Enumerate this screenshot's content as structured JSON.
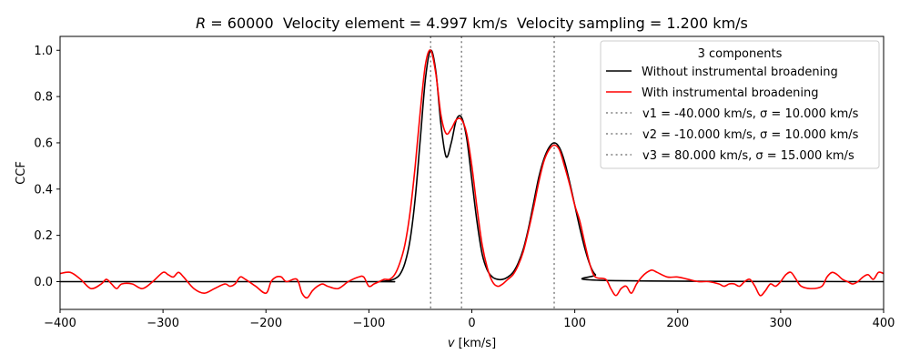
{
  "chart_data": {
    "type": "line",
    "title": {
      "r_symbol": "R",
      "r_text": " = 60000  Velocity element = 4.997 km/s  Velocity sampling = 1.200 km/s"
    },
    "xlabel": {
      "symbol": "v",
      "unit": " [km/s]"
    },
    "ylabel": "CCF",
    "xlim": [
      -400,
      400
    ],
    "ylim": [
      -0.12,
      1.06
    ],
    "xticks": [
      -400,
      -300,
      -200,
      -100,
      0,
      100,
      200,
      300,
      400
    ],
    "yticks": [
      0.0,
      0.2,
      0.4,
      0.6,
      0.8,
      1.0
    ],
    "ytick_labels": [
      "0.0",
      "0.2",
      "0.4",
      "0.6",
      "0.8",
      "1.0"
    ],
    "grid": false,
    "legend": {
      "placement": "top-right",
      "title": "3 components",
      "entries": [
        "Without instrumental broadening",
        "With instrumental broadening",
        "v1 = -40.000 km/s, σ = 10.000 km/s",
        "v2 = -10.000 km/s, σ = 10.000 km/s",
        "v3 = 80.000 km/s, σ = 15.000 km/s"
      ]
    },
    "components": [
      {
        "v": -40.0,
        "sigma": 10.0,
        "amplitude": 1.0
      },
      {
        "v": -10.0,
        "sigma": 10.0,
        "amplitude": 0.7
      },
      {
        "v": 80.0,
        "sigma": 15.0,
        "amplitude": 0.6
      }
    ],
    "series": [
      {
        "name": "Without instrumental broadening",
        "color": "#000000",
        "x": [
          -400,
          -100,
          -90,
          -80,
          -75,
          -70,
          -65,
          -60,
          -55,
          -50,
          -45,
          -40,
          -35,
          -30,
          -25,
          -20,
          -15,
          -10,
          -5,
          0,
          5,
          10,
          15,
          20,
          25,
          30,
          35,
          40,
          45,
          50,
          55,
          60,
          65,
          70,
          75,
          80,
          85,
          90,
          95,
          100,
          105,
          110,
          115,
          120,
          130,
          400
        ],
        "y": [
          0.0,
          0.0,
          0.0,
          0.005,
          0.012,
          0.03,
          0.08,
          0.18,
          0.36,
          0.62,
          0.88,
          1.0,
          0.91,
          0.68,
          0.54,
          0.6,
          0.7,
          0.71,
          0.62,
          0.44,
          0.26,
          0.12,
          0.05,
          0.02,
          0.01,
          0.01,
          0.02,
          0.04,
          0.08,
          0.14,
          0.23,
          0.34,
          0.45,
          0.53,
          0.58,
          0.6,
          0.58,
          0.52,
          0.43,
          0.33,
          0.23,
          0.14,
          0.07,
          0.03,
          0.005,
          0.0
        ]
      },
      {
        "name": "With instrumental broadening",
        "color": "#ff0000",
        "x": [
          -400,
          -390,
          -380,
          -370,
          -360,
          -355,
          -350,
          -345,
          -340,
          -330,
          -320,
          -310,
          -300,
          -295,
          -290,
          -285,
          -280,
          -270,
          -260,
          -250,
          -240,
          -235,
          -230,
          -225,
          -220,
          -210,
          -200,
          -195,
          -190,
          -185,
          -180,
          -170,
          -165,
          -160,
          -155,
          -150,
          -145,
          -140,
          -130,
          -120,
          -110,
          -105,
          -100,
          -95,
          -90,
          -85,
          -80,
          -75,
          -70,
          -65,
          -60,
          -55,
          -50,
          -45,
          -40,
          -35,
          -30,
          -25,
          -20,
          -15,
          -10,
          -5,
          0,
          5,
          10,
          15,
          20,
          25,
          30,
          35,
          40,
          45,
          50,
          55,
          60,
          65,
          70,
          75,
          80,
          85,
          90,
          95,
          100,
          105,
          110,
          115,
          120,
          130,
          135,
          140,
          145,
          150,
          155,
          160,
          165,
          170,
          175,
          180,
          190,
          200,
          210,
          220,
          230,
          240,
          245,
          250,
          255,
          260,
          265,
          270,
          275,
          280,
          285,
          290,
          295,
          300,
          305,
          310,
          315,
          320,
          330,
          340,
          345,
          350,
          355,
          360,
          365,
          370,
          375,
          380,
          385,
          390,
          395,
          400
        ],
        "y": [
          0.035,
          0.04,
          0.01,
          -0.03,
          -0.01,
          0.01,
          -0.01,
          -0.03,
          -0.01,
          -0.01,
          -0.03,
          0.0,
          0.04,
          0.03,
          0.02,
          0.04,
          0.02,
          -0.03,
          -0.05,
          -0.03,
          -0.01,
          -0.02,
          -0.01,
          0.02,
          0.01,
          -0.02,
          -0.05,
          0.0,
          0.02,
          0.02,
          0.0,
          0.01,
          -0.05,
          -0.07,
          -0.04,
          -0.02,
          -0.01,
          -0.02,
          -0.03,
          0.0,
          0.02,
          0.02,
          -0.02,
          -0.01,
          0.0,
          0.01,
          0.01,
          0.03,
          0.08,
          0.16,
          0.3,
          0.5,
          0.74,
          0.94,
          1.0,
          0.9,
          0.72,
          0.64,
          0.66,
          0.7,
          0.7,
          0.64,
          0.5,
          0.32,
          0.16,
          0.06,
          0.0,
          -0.02,
          -0.01,
          0.01,
          0.03,
          0.07,
          0.13,
          0.22,
          0.32,
          0.43,
          0.52,
          0.57,
          0.59,
          0.57,
          0.5,
          0.42,
          0.33,
          0.26,
          0.16,
          0.07,
          0.02,
          0.01,
          -0.03,
          -0.06,
          -0.03,
          -0.02,
          -0.05,
          -0.01,
          0.02,
          0.04,
          0.05,
          0.04,
          0.02,
          0.02,
          0.01,
          0.0,
          0.0,
          -0.01,
          -0.02,
          -0.01,
          -0.01,
          -0.02,
          0.0,
          0.01,
          -0.02,
          -0.06,
          -0.04,
          -0.01,
          -0.02,
          0.0,
          0.03,
          0.04,
          0.01,
          -0.02,
          -0.03,
          -0.02,
          0.02,
          0.04,
          0.03,
          0.01,
          0.0,
          -0.01,
          0.0,
          0.02,
          0.03,
          0.01,
          0.04,
          0.035
        ]
      }
    ],
    "vlines": [
      {
        "x": -40.0,
        "color": "#808080",
        "style": "dotted"
      },
      {
        "x": -10.0,
        "color": "#808080",
        "style": "dotted"
      },
      {
        "x": 80.0,
        "color": "#808080",
        "style": "dotted"
      }
    ]
  }
}
